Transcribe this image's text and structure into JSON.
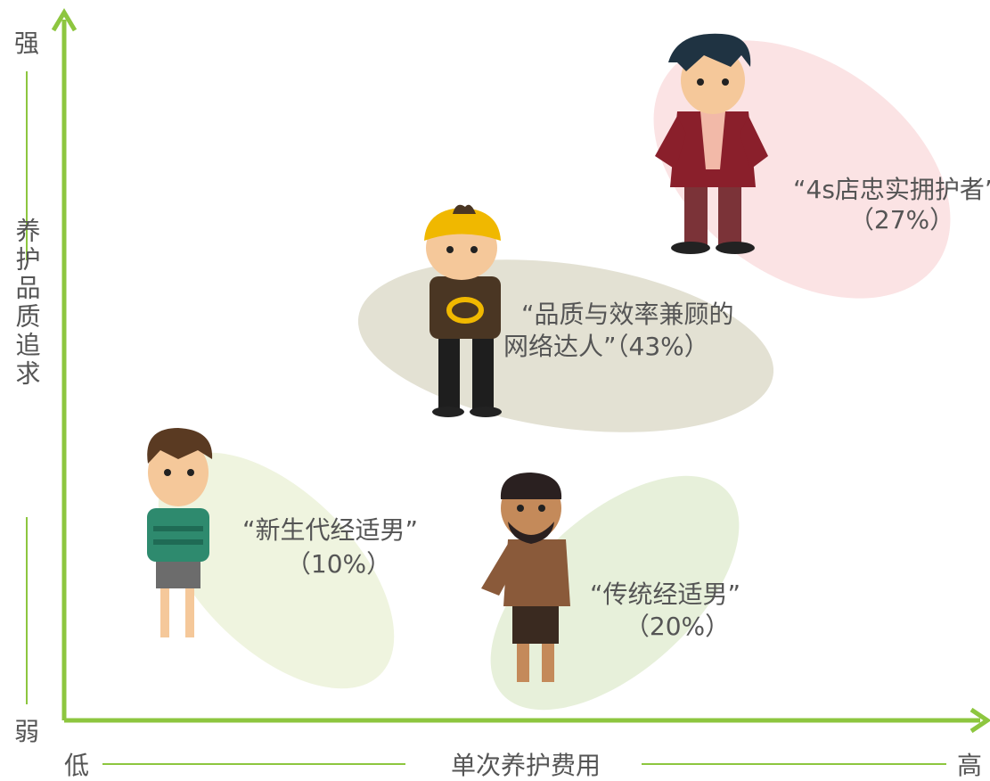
{
  "axes": {
    "y_high": "强",
    "y_low": "弱",
    "y_title": "养护品质追求",
    "x_low": "低",
    "x_high": "高",
    "x_title": "单次养护费用"
  },
  "groups": [
    {
      "lines": [
        "“4s店忠实拥护者”",
        "（27%）"
      ]
    },
    {
      "lines": [
        "“品质与效率兼顾的",
        "网络达人”（43%）"
      ]
    },
    {
      "lines": [
        "“新生代经适男”",
        "（10%）"
      ]
    },
    {
      "lines": [
        "“传统经适男”",
        "（20%）"
      ]
    }
  ]
}
